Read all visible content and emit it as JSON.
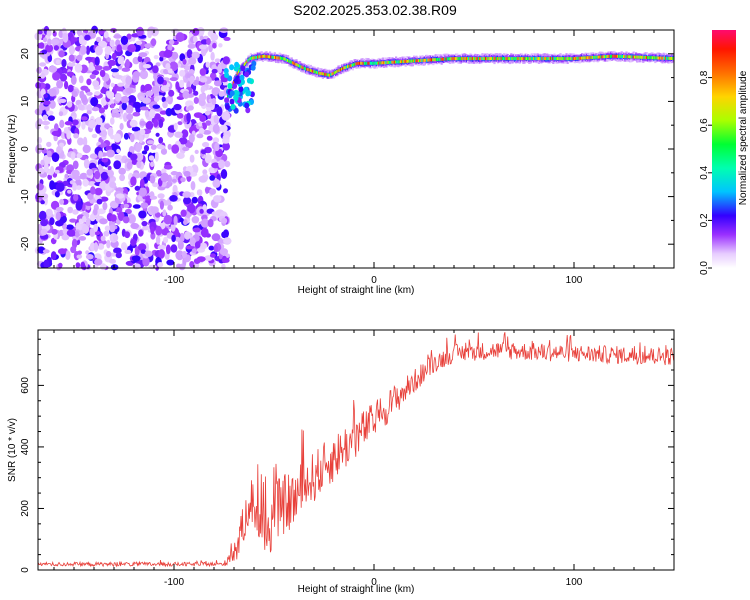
{
  "title": "S202.2025.353.02.38.R09",
  "chart_data": [
    {
      "type": "heatmap",
      "xlabel": "Height of straight line (km)",
      "ylabel": "Frequency (Hz)",
      "xlim": [
        -168,
        150
      ],
      "ylim": [
        -25,
        25
      ],
      "xticks": [
        -100,
        0,
        100
      ],
      "yticks": [
        -20,
        -10,
        0,
        10,
        20
      ],
      "colorbar": {
        "label": "Normalized spectral amplitude",
        "range": [
          0,
          1
        ],
        "ticks": [
          0.0,
          0.2,
          0.4,
          0.6,
          0.8
        ]
      },
      "noise_region_x": [
        -168,
        -73
      ],
      "ridge": {
        "x": [
          -73,
          -68,
          -62,
          -55,
          -45,
          -35,
          -28,
          -22,
          -15,
          -8,
          0,
          20,
          40,
          60,
          80,
          100,
          120,
          150
        ],
        "freq": [
          11,
          16,
          19,
          19.5,
          19,
          17,
          16,
          15.5,
          17,
          18,
          18,
          18.5,
          19,
          19,
          19,
          19,
          19.5,
          19
        ]
      }
    },
    {
      "type": "line",
      "xlabel": "Height of straight line (km)",
      "ylabel": "SNR (10 * v/v)",
      "xlim": [
        -168,
        150
      ],
      "ylim": [
        0,
        780
      ],
      "xticks": [
        -100,
        0,
        100
      ],
      "yticks": [
        0,
        200,
        400,
        600
      ],
      "series": [
        {
          "name": "SNR",
          "color": "#e8403a",
          "x": [
            -168,
            -75,
            -68,
            -62,
            -58,
            -55,
            -48,
            -40,
            -30,
            -20,
            -10,
            0,
            10,
            20,
            30,
            40,
            60,
            80,
            100,
            120,
            150
          ],
          "envelope": [
            20,
            20,
            90,
            250,
            200,
            120,
            220,
            250,
            320,
            380,
            440,
            500,
            560,
            620,
            680,
            710,
            720,
            715,
            710,
            705,
            700
          ],
          "spread": [
            10,
            10,
            80,
            120,
            140,
            140,
            150,
            150,
            130,
            120,
            110,
            90,
            80,
            60,
            50,
            45,
            45,
            45,
            45,
            45,
            45
          ]
        }
      ]
    }
  ]
}
